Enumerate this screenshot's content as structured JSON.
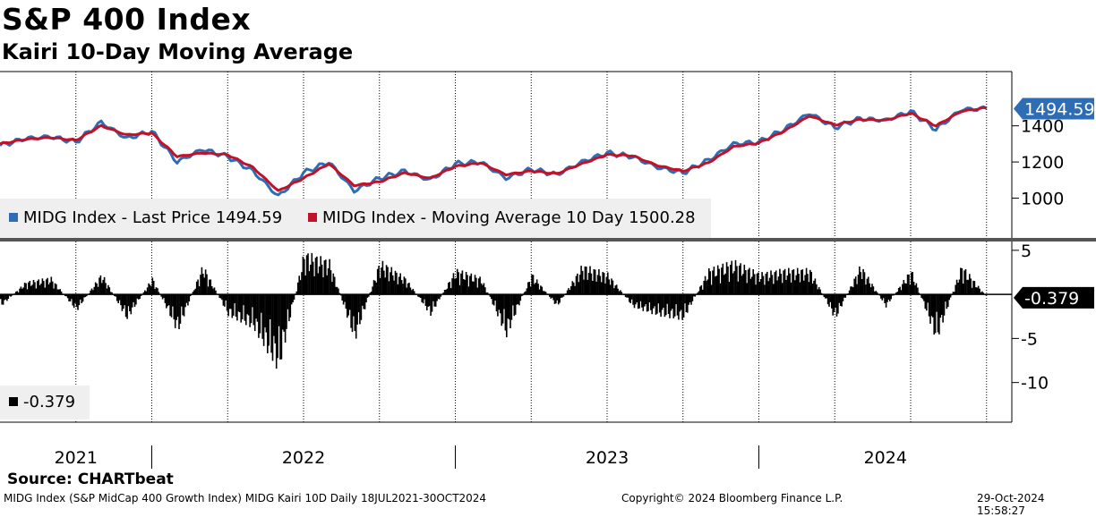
{
  "header": {
    "title": "S&P 400 Index",
    "subtitle": "Kairi 10-Day Moving Average"
  },
  "footer": {
    "source": "Source: CHARTbeat",
    "security": "MIDG Index (S&P MidCap 400 Growth Index) MIDG Kairi 10D  Daily 18JUL2021-30OCT2024",
    "copyright": "Copyright© 2024 Bloomberg Finance L.P.",
    "timestamp": "29-Oct-2024 15:58:27"
  },
  "colors": {
    "price": "#2e6db4",
    "ma": "#c0132a",
    "kairi": "#000000",
    "legend_bg": "#efefef",
    "grid": "#000000"
  },
  "chart_data": [
    {
      "type": "line",
      "panel": "top",
      "x_labels": [
        "2021",
        "2022",
        "2023",
        "2024"
      ],
      "y_ticks": [
        1000,
        1200,
        1400
      ],
      "ylim": [
        780,
        1700
      ],
      "grid": "dotted vertical",
      "last_value_label": "1494.59",
      "series": [
        {
          "name": "MIDG Index - Last Price 1494.59",
          "color": "#2e6db4",
          "x": [
            "2021-07",
            "2021-08",
            "2021-09",
            "2021-10",
            "2021-11",
            "2021-12",
            "2022-01",
            "2022-02",
            "2022-03",
            "2022-04",
            "2022-05",
            "2022-06",
            "2022-07",
            "2022-08",
            "2022-09",
            "2022-10",
            "2022-11",
            "2022-12",
            "2023-01",
            "2023-02",
            "2023-03",
            "2023-04",
            "2023-05",
            "2023-06",
            "2023-07",
            "2023-08",
            "2023-09",
            "2023-10",
            "2023-11",
            "2023-12",
            "2024-01",
            "2024-02",
            "2024-03",
            "2024-04",
            "2024-05",
            "2024-06",
            "2024-07",
            "2024-08",
            "2024-09",
            "2024-10"
          ],
          "values": [
            1290,
            1330,
            1340,
            1310,
            1420,
            1330,
            1370,
            1200,
            1270,
            1230,
            1150,
            1010,
            1140,
            1200,
            1040,
            1110,
            1150,
            1100,
            1190,
            1200,
            1110,
            1160,
            1130,
            1200,
            1250,
            1230,
            1170,
            1140,
            1210,
            1300,
            1310,
            1380,
            1470,
            1390,
            1440,
            1430,
            1480,
            1380,
            1490,
            1495
          ]
        },
        {
          "name": "MIDG Index - Moving Average 10 Day 1500.28",
          "color": "#c0132a",
          "x": [
            "2021-07",
            "2021-08",
            "2021-09",
            "2021-10",
            "2021-11",
            "2021-12",
            "2022-01",
            "2022-02",
            "2022-03",
            "2022-04",
            "2022-05",
            "2022-06",
            "2022-07",
            "2022-08",
            "2022-09",
            "2022-10",
            "2022-11",
            "2022-12",
            "2023-01",
            "2023-02",
            "2023-03",
            "2023-04",
            "2023-05",
            "2023-06",
            "2023-07",
            "2023-08",
            "2023-09",
            "2023-10",
            "2023-11",
            "2023-12",
            "2024-01",
            "2024-02",
            "2024-03",
            "2024-04",
            "2024-05",
            "2024-06",
            "2024-07",
            "2024-08",
            "2024-09",
            "2024-10"
          ],
          "values": [
            1300,
            1325,
            1335,
            1320,
            1400,
            1350,
            1360,
            1230,
            1250,
            1240,
            1170,
            1040,
            1110,
            1190,
            1070,
            1090,
            1140,
            1110,
            1175,
            1195,
            1130,
            1150,
            1135,
            1190,
            1240,
            1235,
            1180,
            1150,
            1195,
            1285,
            1305,
            1370,
            1455,
            1405,
            1435,
            1430,
            1470,
            1400,
            1480,
            1500
          ]
        }
      ]
    },
    {
      "type": "bar",
      "panel": "bottom",
      "series_name": "-0.379",
      "y_ticks": [
        5,
        0,
        -5,
        -10
      ],
      "ylim": [
        -14.5,
        6
      ],
      "last_value_label": "-0.379",
      "color": "#000000",
      "x": [
        "2021-07",
        "2021-08",
        "2021-09",
        "2021-10",
        "2021-11",
        "2021-12",
        "2022-01",
        "2022-02",
        "2022-03",
        "2022-04",
        "2022-05",
        "2022-06",
        "2022-07",
        "2022-08",
        "2022-09",
        "2022-10",
        "2022-11",
        "2022-12",
        "2023-01",
        "2023-02",
        "2023-03",
        "2023-04",
        "2023-05",
        "2023-06",
        "2023-07",
        "2023-08",
        "2023-09",
        "2023-10",
        "2023-11",
        "2023-12",
        "2024-01",
        "2024-02",
        "2024-03",
        "2024-04",
        "2024-05",
        "2024-06",
        "2024-07",
        "2024-08",
        "2024-09",
        "2024-10"
      ],
      "values": [
        -1.5,
        1.5,
        2.0,
        -2.0,
        2.5,
        -3.0,
        2.0,
        -4.5,
        3.5,
        -2.5,
        -4.0,
        -9.0,
        5.0,
        4.0,
        -5.5,
        4.0,
        2.0,
        -2.5,
        3.0,
        2.0,
        -5.0,
        2.5,
        -1.5,
        3.5,
        2.5,
        -1.5,
        -2.5,
        -3.0,
        3.0,
        4.0,
        2.5,
        3.0,
        3.0,
        -3.0,
        3.5,
        -1.5,
        3.0,
        -5.5,
        3.5,
        -0.379
      ]
    }
  ]
}
